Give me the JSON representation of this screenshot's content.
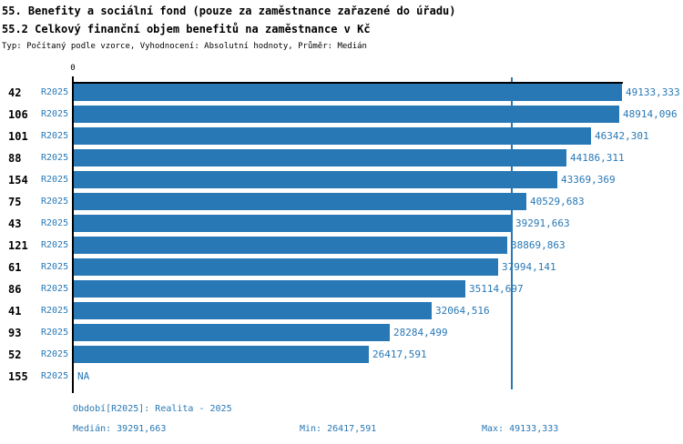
{
  "header": {
    "title_line1": "55. Benefity a sociální fond (pouze za zaměstnance zařazené do úřadu)",
    "title_line2": "55.2 Celkový finanční objem benefitů na zaměstnance v Kč",
    "meta": "Typ: Počítaný podle vzorce, Vyhodnocení: Absolutní hodnoty, Průměr: Medián"
  },
  "chart_data": {
    "type": "bar",
    "orientation": "horizontal",
    "title": "55.2 Celkový finanční objem benefitů na zaměstnance v Kč",
    "xlabel": "",
    "ylabel": "",
    "x_axis": {
      "origin_tick_label": "0",
      "min": 0,
      "max": 49133.333
    },
    "grid": false,
    "legend_position": "none",
    "median_value": 39291.663,
    "rows": [
      {
        "id": "42",
        "period": "R2025",
        "value": 49133.333,
        "label": "49133,333"
      },
      {
        "id": "106",
        "period": "R2025",
        "value": 48914.096,
        "label": "48914,096"
      },
      {
        "id": "101",
        "period": "R2025",
        "value": 46342.301,
        "label": "46342,301"
      },
      {
        "id": "88",
        "period": "R2025",
        "value": 44186.311,
        "label": "44186,311"
      },
      {
        "id": "154",
        "period": "R2025",
        "value": 43369.369,
        "label": "43369,369"
      },
      {
        "id": "75",
        "period": "R2025",
        "value": 40529.683,
        "label": "40529,683"
      },
      {
        "id": "43",
        "period": "R2025",
        "value": 39291.663,
        "label": "39291,663"
      },
      {
        "id": "121",
        "period": "R2025",
        "value": 38869.863,
        "label": "38869,863"
      },
      {
        "id": "61",
        "period": "R2025",
        "value": 37994.141,
        "label": "37994,141"
      },
      {
        "id": "86",
        "period": "R2025",
        "value": 35114.697,
        "label": "35114,697"
      },
      {
        "id": "41",
        "period": "R2025",
        "value": 32064.516,
        "label": "32064,516"
      },
      {
        "id": "93",
        "period": "R2025",
        "value": 28284.499,
        "label": "28284,499"
      },
      {
        "id": "52",
        "period": "R2025",
        "value": 26417.591,
        "label": "26417,591"
      },
      {
        "id": "155",
        "period": "R2025",
        "value": null,
        "label": "NA"
      }
    ]
  },
  "footer": {
    "period_info": "Období[R2025]: Realita - 2025",
    "median": "Medián: 39291,663",
    "min": "Min: 26417,591",
    "max": "Max: 49133,333"
  },
  "colors": {
    "bar": "#2878b5",
    "accent_text": "#2878b5",
    "axis": "#000000",
    "median_line": "#2878b5"
  }
}
